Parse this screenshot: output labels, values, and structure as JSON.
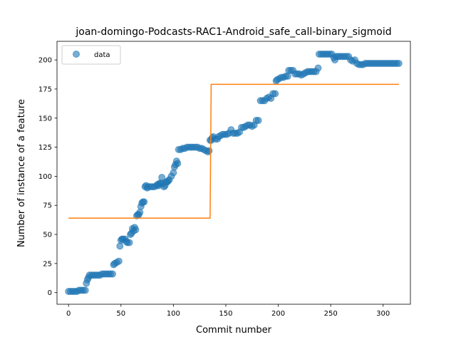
{
  "chart_data": {
    "type": "scatter",
    "title": "joan-domingo-Podcasts-RAC1-Android_safe_call-binary_sigmoid",
    "xlabel": "Commit number",
    "ylabel": "Number of instance of a feature",
    "xlim": [
      -11,
      326
    ],
    "ylim": [
      -10,
      216
    ],
    "xticks": [
      0,
      50,
      100,
      150,
      200,
      250,
      300
    ],
    "yticks": [
      0,
      25,
      50,
      75,
      100,
      125,
      150,
      175,
      200
    ],
    "legend": {
      "position": "top-left",
      "entries": [
        "data"
      ]
    },
    "colors": {
      "data": "#1f77b4",
      "fit": "#ff7f0e"
    },
    "series": [
      {
        "name": "data",
        "kind": "scatter",
        "points": [
          [
            0,
            1
          ],
          [
            2,
            1
          ],
          [
            4,
            1
          ],
          [
            6,
            1
          ],
          [
            8,
            1
          ],
          [
            10,
            2
          ],
          [
            12,
            2
          ],
          [
            14,
            2
          ],
          [
            16,
            2
          ],
          [
            17,
            8
          ],
          [
            18,
            11
          ],
          [
            19,
            13
          ],
          [
            20,
            15
          ],
          [
            22,
            15
          ],
          [
            24,
            15
          ],
          [
            26,
            15
          ],
          [
            28,
            15
          ],
          [
            30,
            15
          ],
          [
            32,
            16
          ],
          [
            34,
            16
          ],
          [
            36,
            16
          ],
          [
            38,
            16
          ],
          [
            40,
            16
          ],
          [
            42,
            16
          ],
          [
            43,
            24
          ],
          [
            44,
            25
          ],
          [
            46,
            26
          ],
          [
            48,
            27
          ],
          [
            49,
            40
          ],
          [
            50,
            45
          ],
          [
            51,
            46
          ],
          [
            52,
            46
          ],
          [
            54,
            46
          ],
          [
            55,
            44
          ],
          [
            56,
            43
          ],
          [
            58,
            43
          ],
          [
            59,
            50
          ],
          [
            60,
            51
          ],
          [
            61,
            55
          ],
          [
            62,
            53
          ],
          [
            63,
            56
          ],
          [
            64,
            54
          ],
          [
            65,
            66
          ],
          [
            66,
            67
          ],
          [
            67,
            67
          ],
          [
            68,
            69
          ],
          [
            69,
            74
          ],
          [
            70,
            77
          ],
          [
            71,
            78
          ],
          [
            72,
            78
          ],
          [
            73,
            91
          ],
          [
            74,
            92
          ],
          [
            75,
            90
          ],
          [
            76,
            91
          ],
          [
            78,
            91
          ],
          [
            80,
            91
          ],
          [
            82,
            91
          ],
          [
            84,
            92
          ],
          [
            85,
            93
          ],
          [
            86,
            92
          ],
          [
            87,
            94
          ],
          [
            88,
            94
          ],
          [
            89,
            99
          ],
          [
            90,
            94
          ],
          [
            91,
            91
          ],
          [
            92,
            92
          ],
          [
            93,
            95
          ],
          [
            94,
            95
          ],
          [
            95,
            96
          ],
          [
            96,
            97
          ],
          [
            98,
            100
          ],
          [
            100,
            103
          ],
          [
            101,
            108
          ],
          [
            102,
            110
          ],
          [
            103,
            113
          ],
          [
            104,
            111
          ],
          [
            105,
            123
          ],
          [
            107,
            123
          ],
          [
            109,
            124
          ],
          [
            111,
            124
          ],
          [
            113,
            125
          ],
          [
            115,
            125
          ],
          [
            117,
            125
          ],
          [
            119,
            125
          ],
          [
            121,
            125
          ],
          [
            123,
            125
          ],
          [
            125,
            124
          ],
          [
            127,
            124
          ],
          [
            129,
            123
          ],
          [
            131,
            122
          ],
          [
            133,
            121
          ],
          [
            134,
            122
          ],
          [
            135,
            131
          ],
          [
            136,
            131
          ],
          [
            137,
            133
          ],
          [
            138,
            134
          ],
          [
            140,
            132
          ],
          [
            142,
            132
          ],
          [
            143,
            134
          ],
          [
            145,
            135
          ],
          [
            147,
            136
          ],
          [
            149,
            136
          ],
          [
            151,
            136
          ],
          [
            153,
            137
          ],
          [
            155,
            140
          ],
          [
            157,
            137
          ],
          [
            159,
            137
          ],
          [
            161,
            137
          ],
          [
            163,
            138
          ],
          [
            165,
            142
          ],
          [
            167,
            142
          ],
          [
            169,
            143
          ],
          [
            171,
            144
          ],
          [
            173,
            144
          ],
          [
            175,
            143
          ],
          [
            177,
            144
          ],
          [
            179,
            148
          ],
          [
            181,
            148
          ],
          [
            183,
            165
          ],
          [
            185,
            165
          ],
          [
            187,
            165
          ],
          [
            189,
            167
          ],
          [
            191,
            168
          ],
          [
            193,
            167
          ],
          [
            195,
            171
          ],
          [
            197,
            171
          ],
          [
            198,
            182
          ],
          [
            199,
            183
          ],
          [
            201,
            184
          ],
          [
            203,
            185
          ],
          [
            205,
            185
          ],
          [
            207,
            186
          ],
          [
            209,
            186
          ],
          [
            210,
            191
          ],
          [
            212,
            191
          ],
          [
            214,
            191
          ],
          [
            216,
            188
          ],
          [
            218,
            188
          ],
          [
            220,
            188
          ],
          [
            222,
            187
          ],
          [
            224,
            188
          ],
          [
            226,
            189
          ],
          [
            228,
            190
          ],
          [
            230,
            190
          ],
          [
            232,
            190
          ],
          [
            234,
            190
          ],
          [
            236,
            190
          ],
          [
            238,
            193
          ],
          [
            239,
            205
          ],
          [
            241,
            205
          ],
          [
            243,
            205
          ],
          [
            245,
            205
          ],
          [
            247,
            205
          ],
          [
            249,
            205
          ],
          [
            251,
            205
          ],
          [
            253,
            202
          ],
          [
            254,
            200
          ],
          [
            255,
            203
          ],
          [
            257,
            203
          ],
          [
            259,
            203
          ],
          [
            261,
            203
          ],
          [
            263,
            203
          ],
          [
            265,
            203
          ],
          [
            267,
            203
          ],
          [
            269,
            200
          ],
          [
            271,
            199
          ],
          [
            273,
            200
          ],
          [
            275,
            197
          ],
          [
            277,
            196
          ],
          [
            279,
            196
          ],
          [
            281,
            196
          ],
          [
            283,
            197
          ],
          [
            285,
            197
          ],
          [
            287,
            197
          ],
          [
            289,
            197
          ],
          [
            291,
            197
          ],
          [
            293,
            197
          ],
          [
            295,
            197
          ],
          [
            297,
            197
          ],
          [
            299,
            197
          ],
          [
            301,
            197
          ],
          [
            303,
            197
          ],
          [
            305,
            197
          ],
          [
            307,
            197
          ],
          [
            309,
            197
          ],
          [
            311,
            197
          ],
          [
            313,
            197
          ],
          [
            315,
            197
          ]
        ]
      },
      {
        "name": "",
        "kind": "line",
        "points": [
          [
            0,
            64
          ],
          [
            135,
            64
          ],
          [
            136,
            179
          ],
          [
            315,
            179
          ]
        ]
      }
    ]
  }
}
